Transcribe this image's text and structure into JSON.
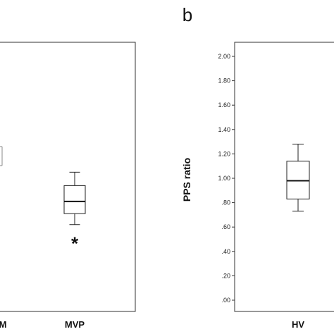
{
  "chart_data": [
    {
      "panel_label": "",
      "type": "box",
      "ylabel": "",
      "categories": [
        "M",
        "MVP"
      ],
      "boxes": [
        {
          "category": "M",
          "min": null,
          "q1": null,
          "median": null,
          "q3": null,
          "max": null
        },
        {
          "category": "MVP",
          "min": 0.62,
          "q1": 0.71,
          "median": 0.81,
          "q3": 0.94,
          "max": 1.05,
          "outliers": [
            0.5
          ]
        }
      ],
      "outlier_symbol": "*",
      "ylim": [
        0.0,
        2.1
      ]
    },
    {
      "panel_label": "b",
      "type": "box",
      "ylabel": "PPS ratio",
      "categories": [
        "HV"
      ],
      "ticks": [
        ".00",
        ".20",
        ".40",
        ".60",
        ".80",
        "1.00",
        "1.20",
        "1.40",
        "1.60",
        "1.80",
        "2.00"
      ],
      "tick_values": [
        0,
        0.2,
        0.4,
        0.6,
        0.8,
        1.0,
        1.2,
        1.4,
        1.6,
        1.8,
        2.0
      ],
      "boxes": [
        {
          "category": "HV",
          "min": 0.73,
          "q1": 0.83,
          "median": 0.98,
          "q3": 1.14,
          "max": 1.28
        }
      ],
      "ylim": [
        0.0,
        2.1
      ]
    }
  ]
}
